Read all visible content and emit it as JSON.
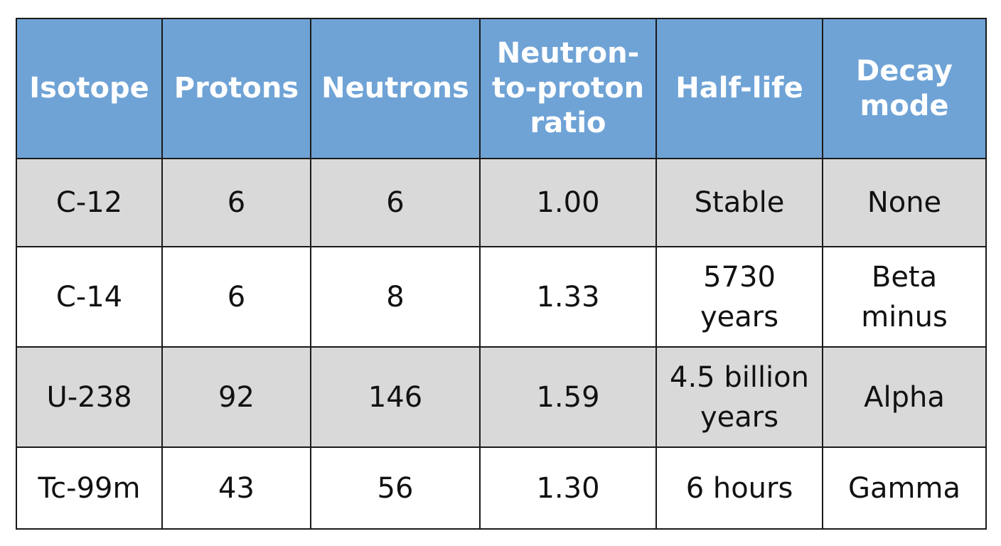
{
  "colors": {
    "header_bg": "#6fa3d6",
    "header_text": "#ffffff",
    "shaded_row": "#d9d9d9",
    "plain_row": "#ffffff",
    "border": "#1a1a1a"
  },
  "headers": [
    [
      "Isotope"
    ],
    [
      "Protons"
    ],
    [
      "Neutrons"
    ],
    [
      "Neutron-",
      "to-proton",
      "ratio"
    ],
    [
      "Half-life"
    ],
    [
      "Decay",
      "mode"
    ]
  ],
  "rows": [
    {
      "isotope": "C-12",
      "protons": "6",
      "neutrons": "6",
      "ratio": "1.00",
      "half_life": [
        "Stable"
      ],
      "decay_mode": [
        "None"
      ]
    },
    {
      "isotope": "C-14",
      "protons": "6",
      "neutrons": "8",
      "ratio": "1.33",
      "half_life": [
        "5730",
        "years"
      ],
      "decay_mode": [
        "Beta",
        "minus"
      ]
    },
    {
      "isotope": "U-238",
      "protons": "92",
      "neutrons": "146",
      "ratio": "1.59",
      "half_life": [
        "4.5 billion",
        "years"
      ],
      "decay_mode": [
        "Alpha"
      ]
    },
    {
      "isotope": "Tc-99m",
      "protons": "43",
      "neutrons": "56",
      "ratio": "1.30",
      "half_life": [
        "6 hours"
      ],
      "decay_mode": [
        "Gamma"
      ]
    }
  ]
}
